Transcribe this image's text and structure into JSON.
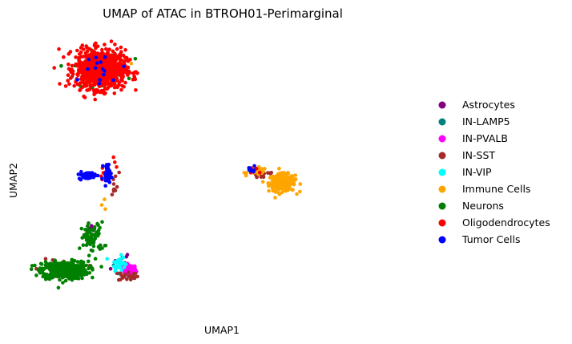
{
  "chart_data": {
    "type": "scatter",
    "title": "UMAP of ATAC in BTROH01-Perimarginal",
    "xlabel": "UMAP1",
    "ylabel": "UMAP2",
    "xlim": [
      0,
      14
    ],
    "ylim": [
      -1,
      9
    ],
    "grid": false,
    "legend_position": "right",
    "series": [
      {
        "name": "Astrocytes",
        "color": "#800080",
        "clusters": [
          {
            "center": [
              2.2,
              2.0
            ],
            "spread": [
              0.15,
              0.15
            ],
            "count": 8
          },
          {
            "center": [
              3.1,
              0.9
            ],
            "spread": [
              0.5,
              0.3
            ],
            "count": 8
          }
        ]
      },
      {
        "name": "IN-LAMP5",
        "color": "#008080",
        "clusters": [
          {
            "center": [
              3.2,
              0.8
            ],
            "spread": [
              0.3,
              0.2
            ],
            "count": 5
          }
        ]
      },
      {
        "name": "IN-PVALB",
        "color": "#ff00ff",
        "clusters": [
          {
            "center": [
              3.55,
              0.6
            ],
            "spread": [
              0.2,
              0.15
            ],
            "count": 60
          }
        ]
      },
      {
        "name": "IN-SST",
        "color": "#a52a2a",
        "clusters": [
          {
            "center": [
              1.2,
              0.6
            ],
            "spread": [
              1.0,
              0.3
            ],
            "count": 20
          },
          {
            "center": [
              3.5,
              0.4
            ],
            "spread": [
              0.3,
              0.15
            ],
            "count": 25
          },
          {
            "center": [
              2.9,
              3.6
            ],
            "spread": [
              0.3,
              0.4
            ],
            "count": 10
          },
          {
            "center": [
              8.4,
              3.9
            ],
            "spread": [
              0.4,
              0.15
            ],
            "count": 15
          },
          {
            "center": [
              2.5,
              7.5
            ],
            "spread": [
              0.8,
              0.5
            ],
            "count": 10
          }
        ]
      },
      {
        "name": "IN-VIP",
        "color": "#00ffff",
        "clusters": [
          {
            "center": [
              3.15,
              0.85
            ],
            "spread": [
              0.2,
              0.2
            ],
            "count": 35
          }
        ]
      },
      {
        "name": "Immune Cells",
        "color": "#ffa500",
        "clusters": [
          {
            "center": [
              9.1,
              3.6
            ],
            "spread": [
              0.4,
              0.25
            ],
            "count": 220
          },
          {
            "center": [
              8.2,
              4.0
            ],
            "spread": [
              0.3,
              0.1
            ],
            "count": 30
          },
          {
            "center": [
              2.6,
              2.8
            ],
            "spread": [
              0.3,
              0.3
            ],
            "count": 3
          },
          {
            "center": [
              2.6,
              7.5
            ],
            "spread": [
              0.7,
              0.5
            ],
            "count": 5
          }
        ]
      },
      {
        "name": "Neurons",
        "color": "#008000",
        "clusters": [
          {
            "center": [
              1.2,
              0.6
            ],
            "spread": [
              0.7,
              0.25
            ],
            "count": 420
          },
          {
            "center": [
              2.2,
              1.7
            ],
            "spread": [
              0.35,
              0.45
            ],
            "count": 70
          },
          {
            "center": [
              2.5,
              7.5
            ],
            "spread": [
              0.8,
              0.5
            ],
            "count": 40
          }
        ]
      },
      {
        "name": "Oligodendrocytes",
        "color": "#ff0000",
        "clusters": [
          {
            "center": [
              2.5,
              7.5
            ],
            "spread": [
              0.75,
              0.55
            ],
            "count": 900
          },
          {
            "center": [
              2.7,
              4.2
            ],
            "spread": [
              0.4,
              0.3
            ],
            "count": 10
          },
          {
            "center": [
              8.1,
              4.0
            ],
            "spread": [
              0.2,
              0.1
            ],
            "count": 6
          }
        ]
      },
      {
        "name": "Tumor Cells",
        "color": "#0000ff",
        "clusters": [
          {
            "center": [
              2.0,
              3.85
            ],
            "spread": [
              0.25,
              0.1
            ],
            "count": 70
          },
          {
            "center": [
              2.75,
              3.95
            ],
            "spread": [
              0.12,
              0.25
            ],
            "count": 35
          },
          {
            "center": [
              8.0,
              4.05
            ],
            "spread": [
              0.1,
              0.08
            ],
            "count": 10
          },
          {
            "center": [
              2.5,
              7.5
            ],
            "spread": [
              0.75,
              0.55
            ],
            "count": 15
          }
        ]
      }
    ]
  }
}
